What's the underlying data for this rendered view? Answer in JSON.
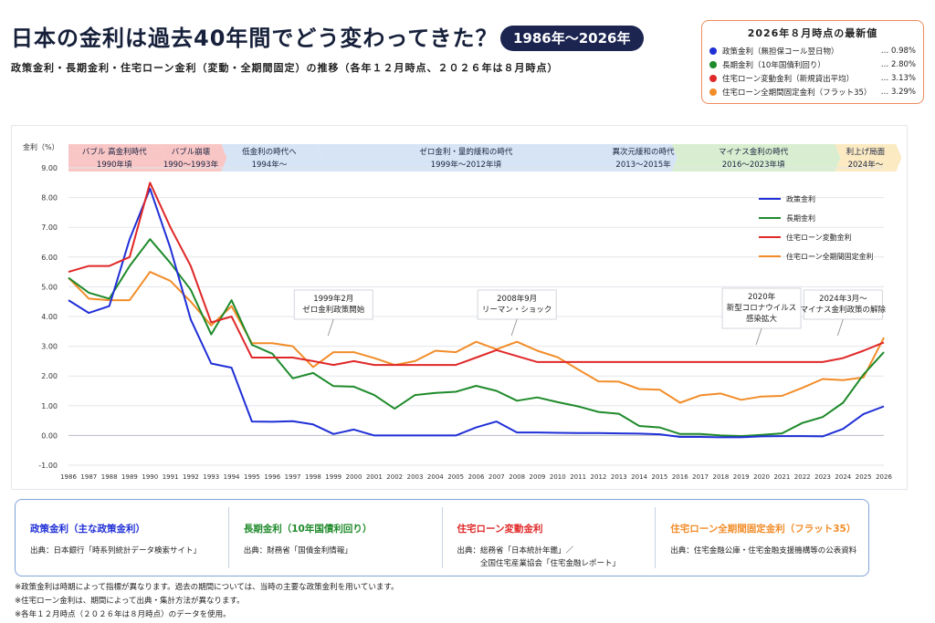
{
  "header": {
    "title": "日本の金利は過去40年間でどう変わってきた？",
    "badge": "1986年〜2026年",
    "subtitle": "政策金利・長期金利・住宅ローン金利（変動・全期間固定）の推移（各年１２月時点、２０２６年は８月時点）"
  },
  "latest": {
    "title": "2026年８月時点の最新値",
    "items": [
      {
        "label": "政策金利（無担保コール翌日物）",
        "value": "… 0.98%",
        "color": "#1f2fd6"
      },
      {
        "label": "長期金利（10年国債利回り）",
        "value": "… 2.80%",
        "color": "#1e8a2a"
      },
      {
        "label": "住宅ローン変動金利（新規貸出平均）",
        "value": "… 3.13%",
        "color": "#e02828"
      },
      {
        "label": "住宅ローン全期間固定金利（フラット35）",
        "value": "… 3.29%",
        "color": "#f28c28"
      }
    ]
  },
  "chart_data": {
    "type": "line",
    "ylabel": "金利（%）",
    "ylim": [
      -1.0,
      9.0
    ],
    "yticks": [
      "9.00",
      "8.00",
      "7.00",
      "6.00",
      "5.00",
      "4.00",
      "3.00",
      "2.00",
      "1.00",
      "0.00",
      "-1.00"
    ],
    "x": [
      1986,
      1987,
      1988,
      1989,
      1990,
      1991,
      1992,
      1993,
      1994,
      1995,
      1996,
      1997,
      1998,
      1999,
      2000,
      2001,
      2002,
      2003,
      2004,
      2005,
      2006,
      2007,
      2008,
      2009,
      2010,
      2011,
      2012,
      2013,
      2014,
      2015,
      2016,
      2017,
      2018,
      2019,
      2020,
      2021,
      2022,
      2023,
      2024,
      2025,
      2026
    ],
    "grid": true,
    "legend_position": "right",
    "series": [
      {
        "name": "政策金利",
        "color": "#1f2fd6",
        "values": [
          4.55,
          4.12,
          4.35,
          6.6,
          8.3,
          6.3,
          3.9,
          2.42,
          2.28,
          0.47,
          0.46,
          0.48,
          0.37,
          0.05,
          0.2,
          0.0,
          0.0,
          0.0,
          0.0,
          0.0,
          0.27,
          0.47,
          0.1,
          0.1,
          0.09,
          0.08,
          0.08,
          0.07,
          0.06,
          0.04,
          -0.05,
          -0.05,
          -0.06,
          -0.06,
          -0.03,
          -0.02,
          -0.02,
          -0.03,
          0.22,
          0.72,
          0.98
        ]
      },
      {
        "name": "長期金利",
        "color": "#1e8a2a",
        "values": [
          5.3,
          4.8,
          4.6,
          5.7,
          6.6,
          5.8,
          4.9,
          3.4,
          4.55,
          3.05,
          2.75,
          1.92,
          2.1,
          1.66,
          1.64,
          1.36,
          0.9,
          1.36,
          1.43,
          1.47,
          1.67,
          1.5,
          1.17,
          1.28,
          1.12,
          0.98,
          0.79,
          0.73,
          0.32,
          0.27,
          0.05,
          0.05,
          0.0,
          -0.02,
          0.02,
          0.07,
          0.42,
          0.62,
          1.1,
          2.05,
          2.8
        ]
      },
      {
        "name": "住宅ローン変動金利",
        "color": "#e02828",
        "values": [
          5.5,
          5.7,
          5.7,
          6.0,
          8.5,
          7.0,
          5.7,
          3.8,
          4.0,
          2.62,
          2.62,
          2.62,
          2.5,
          2.37,
          2.5,
          2.37,
          2.37,
          2.37,
          2.37,
          2.37,
          2.62,
          2.87,
          2.67,
          2.47,
          2.47,
          2.47,
          2.47,
          2.47,
          2.47,
          2.47,
          2.47,
          2.47,
          2.47,
          2.47,
          2.47,
          2.47,
          2.47,
          2.47,
          2.6,
          2.85,
          3.13
        ]
      },
      {
        "name": "住宅ローン全期間固定金利",
        "color": "#f28c28",
        "values": [
          5.3,
          4.6,
          4.55,
          4.55,
          5.5,
          5.2,
          4.5,
          3.7,
          4.35,
          3.1,
          3.1,
          3.0,
          2.3,
          2.8,
          2.8,
          2.6,
          2.37,
          2.5,
          2.85,
          2.8,
          3.15,
          2.9,
          3.15,
          2.85,
          2.63,
          2.22,
          1.82,
          1.81,
          1.56,
          1.54,
          1.1,
          1.35,
          1.41,
          1.2,
          1.31,
          1.33,
          1.6,
          1.9,
          1.86,
          1.95,
          3.29
        ]
      }
    ],
    "eras": [
      {
        "line1": "バブル 高金利時代",
        "line2": "1990年頃",
        "color": "#f9c6c6",
        "from": 1986,
        "to": 1990.5
      },
      {
        "line1": "バブル崩壊",
        "line2": "1990〜1993年",
        "color": "#f9c6c6",
        "from": 1990.5,
        "to": 1993.5
      },
      {
        "line1": "低金利の時代へ",
        "line2": "1994年〜",
        "color": "#d6e4f5",
        "from": 1993.5,
        "to": 1998.2
      },
      {
        "line1": "ゼロ金利・量的緩和の時代",
        "line2": "1999年〜2012年頃",
        "color": "#d6e4f5",
        "from": 1998.2,
        "to": 2012.8
      },
      {
        "line1": "異次元緩和の時代",
        "line2": "2013〜2015年",
        "color": "#d6e4f5",
        "from": 2012.8,
        "to": 2015.6
      },
      {
        "line1": "マイナス金利の時代",
        "line2": "2016〜2023年頃",
        "color": "#d9eed0",
        "from": 2015.6,
        "to": 2023.6
      },
      {
        "line1": "利上げ局面",
        "line2": "2024年〜",
        "color": "#fbeac2",
        "from": 2023.6,
        "to": 2026.6
      }
    ],
    "annotations": [
      {
        "line1": "1999年2月",
        "line2": "ゼロ金利政策開始",
        "year": 1999
      },
      {
        "line1": "2008年9月",
        "line2": "リーマン・ショック",
        "year": 2008
      },
      {
        "line1": "2020年",
        "line2": "新型コロナウイルス",
        "line3": "感染拡大",
        "year": 2020
      },
      {
        "line1": "2024年3月〜",
        "line2": "マイナス金利政策の解除",
        "year": 2024
      }
    ]
  },
  "sources": [
    {
      "title": "政策金利（主な政策金利）",
      "color": "#1f2fd6",
      "lines": [
        "出典：日本銀行「時系列統計データ検索サイト」"
      ]
    },
    {
      "title": "長期金利（10年国債利回り）",
      "color": "#1e8a2a",
      "lines": [
        "出典：財務省「国債金利情報」"
      ]
    },
    {
      "title": "住宅ローン変動金利",
      "color": "#e02828",
      "lines": [
        "出典：総務省「日本統計年鑑」／",
        "　　　全国住宅産業協会「住宅金融レポート」"
      ]
    },
    {
      "title": "住宅ローン全期間固定金利（フラット35）",
      "color": "#f28c28",
      "lines": [
        "出典：住宅金融公庫・住宅金融支援機構等の公表資料"
      ]
    }
  ],
  "notes": [
    "※政策金利は時期によって指標が異なります。過去の期間については、当時の主要な政策金利を用いています。",
    "※住宅ローン金利は、期間によって出典・集計方法が異なります。",
    "※各年１２月時点（２０２６年は８月時点）のデータを使用。"
  ]
}
